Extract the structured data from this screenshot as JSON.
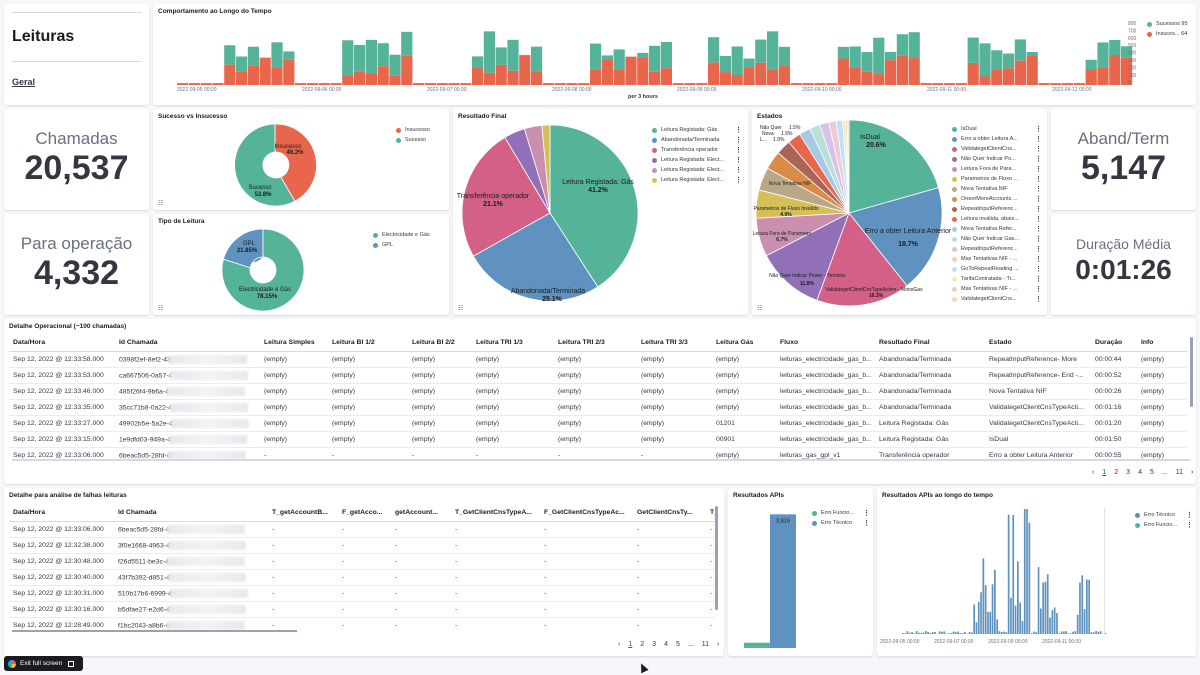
{
  "header": {
    "title": "Leituras",
    "link": "Geral"
  },
  "colors": {
    "success": "#54b399",
    "failure": "#e7664c",
    "blue": "#6092c0",
    "pink": "#d36086",
    "purple": "#9170b8",
    "yellow": "#d6bf57",
    "tan": "#b9a888",
    "orange": "#da8b45",
    "lilac": "#ca8eae",
    "rose": "#e7664c"
  },
  "timeline": {
    "title": "Comportamento ao Longo do Tempo",
    "xlabel": "per 3 hours",
    "ticks": [
      "2022-09-05 00:00",
      "2022-09-06 00:00",
      "2022-09-07 00:00",
      "2022-09-08 00:00",
      "2022-09-09 00:00",
      "2022-09-10 00:00",
      "2022-09-11 00:00",
      "2022-09-12 00:00"
    ],
    "yticks": [
      "800",
      "700",
      "600",
      "500",
      "400",
      "300",
      "200",
      "100",
      "0"
    ],
    "legend": [
      {
        "name": "Sucessos",
        "value": "95"
      },
      {
        "name": "Insuces...",
        "value": "64"
      }
    ]
  },
  "metrics": {
    "chamadas": {
      "label": "Chamadas",
      "value": "20,537"
    },
    "operacao": {
      "label": "Para operação",
      "value": "4,332"
    },
    "aband": {
      "label": "Aband/Term",
      "value": "5,147"
    },
    "duracao": {
      "label": "Duração Média",
      "value": "0:01:26"
    }
  },
  "sucesso": {
    "title": "Sucesso vs Insucesso",
    "legend": [
      "Insucesso",
      "Sucesso"
    ],
    "labels": {
      "insucesso": "Insucesso",
      "insucesso_pct": "46.2%",
      "sucesso": "Sucesso",
      "sucesso_pct": "53.8%"
    }
  },
  "tipo": {
    "title": "Tipo de Leitura",
    "legend": [
      "Electricidade e Gás",
      "GPL"
    ],
    "labels": {
      "gpl": "GPL",
      "gpl_pct": "21.85%",
      "elec": "Electricidade e Gás",
      "elec_pct": "78.15%"
    }
  },
  "resultado": {
    "title": "Resultado Final",
    "legend": [
      "Leitura Registada: Gás",
      "Abandonada/Terminada",
      "Transferência operador",
      "Leitura Registada: Elect...",
      "Leitura Registada: Elect...",
      "Leitura Registada: Elect..."
    ],
    "labels": {
      "gas": "Leitura Registada: Gás",
      "gas_pct": "41.2%",
      "aband": "Abandonada/Terminada",
      "aband_pct": "25.1%",
      "transf": "Transferência operador",
      "transf_pct": "21.1%"
    }
  },
  "estados": {
    "title": "Estados",
    "legend": [
      "IsDual",
      "Erro a obter Leitura A...",
      "ValidategetClientCns...",
      "Não Quer Indicar Po...",
      "Leitura Fora de Para...",
      "Parametros de Fluxo ...",
      "Nova Tentativa NIF",
      "OneorMoreAccounts ...",
      "RepeatInputReferenc...",
      "Leitura inválida, abaix...",
      "Nova Tentativa Refer...",
      "Não Quer Indicar Gas...",
      "RepeatInputReferenc...",
      "Max Tentativas NIF - ...",
      "GoToRepeatReading ...",
      "TarifaContratada - Tr...",
      "Max Tentativas NIF - ...",
      "ValidategetClientCns..."
    ],
    "labels": {
      "isdual": "IsDual",
      "isdual_pct": "20.6%",
      "erro": "Erro a obter Leitura Anterior",
      "erro_pct": "18.7%",
      "valid": "ValidategetClientCnsTypeAction - MonoGas",
      "valid_pct": "16.3%",
      "naoquer": "Não Quer Indicar Power - Termina",
      "naoquer_pct": "11.8%",
      "fora": "Leitura Fora de Parametro",
      "fora_pct": "6.7%",
      "param": "Parametros de Fluxo Inválido",
      "param_pct": "4.9%",
      "nova": "Nova Tentativa NIF",
      "s1": "Não Quer",
      "s1p": "1.5%",
      "s2": "Nova",
      "s2p": "1.9%",
      "s3": "L...",
      "s3p": "1.9%"
    }
  },
  "detalhe": {
    "title": "Detalhe Operacional (~100 chamadas)",
    "columns": [
      "Data/Hora",
      "Id Chamada",
      "Leitura Simples",
      "Leitura BI 1/2",
      "Leitura BI 2/2",
      "Leitura TRI 1/3",
      "Leitura TRI 2/3",
      "Leitura TRI 3/3",
      "Leitura Gás",
      "Fluxo",
      "Resultado Final",
      "Estado",
      "Duração",
      "Info"
    ],
    "rows": [
      [
        "Sep 12, 2022 @ 12:33:58.000",
        "0398f2ef-8ef2-43",
        "(empty)",
        "(empty)",
        "(empty)",
        "(empty)",
        "(empty)",
        "(empty)",
        "(empty)",
        "leituras_electricidade_gas_b...",
        "Abandonada/Terminada",
        "RepeatInputReference- More",
        "00:00:44",
        "(empty)"
      ],
      [
        "Sep 12, 2022 @ 12:33:53.000",
        "ca667506-0a57-4",
        "(empty)",
        "(empty)",
        "(empty)",
        "(empty)",
        "(empty)",
        "(empty)",
        "(empty)",
        "leituras_electricidade_gas_b...",
        "Abandonada/Terminada",
        "RepeatInputReference- End -...",
        "00:00:52",
        "(empty)"
      ],
      [
        "Sep 12, 2022 @ 12:33:46.000",
        "485f26f4-9b6a-4",
        "(empty)",
        "(empty)",
        "(empty)",
        "(empty)",
        "(empty)",
        "(empty)",
        "(empty)",
        "leituras_electricidade_gas_b...",
        "Abandonada/Terminada",
        "Nova Tentativa NIF",
        "00:00:26",
        "(empty)"
      ],
      [
        "Sep 12, 2022 @ 12:33:35.000",
        "35cc71b8-0a22-4",
        "(empty)",
        "(empty)",
        "(empty)",
        "(empty)",
        "(empty)",
        "(empty)",
        "(empty)",
        "leituras_electricidade_gas_b...",
        "Abandonada/Terminada",
        "ValidategetClientCnsTypeActi...",
        "00:01:16",
        "(empty)"
      ],
      [
        "Sep 12, 2022 @ 12:33:27.000",
        "49902b5e-5a2e-4",
        "(empty)",
        "(empty)",
        "(empty)",
        "(empty)",
        "(empty)",
        "(empty)",
        "01201",
        "leituras_electricidade_gas_b...",
        "Leitura Registada: Gás",
        "ValidategetClientCnsTypeActi...",
        "00:01:20",
        "(empty)"
      ],
      [
        "Sep 12, 2022 @ 12:33:15.000",
        "1e9dfd03-949a-4",
        "(empty)",
        "(empty)",
        "(empty)",
        "(empty)",
        "(empty)",
        "(empty)",
        "00901",
        "leituras_electricidade_gas_b...",
        "Leitura Registada: Gás",
        "IsDual",
        "00:01:50",
        "(empty)"
      ],
      [
        "Sep 12, 2022 @ 12:33:06.000",
        "6beac5d5-28fd-4",
        "-",
        "-",
        "-",
        "-",
        "-",
        "-",
        "(empty)",
        "leituras_gas_gpl_v1",
        "Transferência operador",
        "Erro a obter Leitura Anterior",
        "00:00:55",
        "(empty)"
      ]
    ],
    "pager": [
      "1",
      "2",
      "3",
      "4",
      "5",
      "...",
      "11"
    ]
  },
  "falhas": {
    "title": "Detalhe para análise de falhas leituras",
    "columns": [
      "Data/Hora",
      "Id Chamada",
      "T_getAccountB...",
      "F_getAcco...",
      "getAccount...",
      "T_GetClientCnsTypeA...",
      "F_GetClientCnsTypeAc...",
      "GetClientCnsTy...",
      "T_..."
    ],
    "rows": [
      [
        "Sep 12, 2022 @ 12:33:06.000",
        "6beac5d5-28fd-4",
        "-",
        "-",
        "-",
        "-",
        "-",
        "-",
        "-"
      ],
      [
        "Sep 12, 2022 @ 12:32:38.000",
        "3f0e1668-4963-4",
        "-",
        "-",
        "-",
        "-",
        "-",
        "-",
        "-"
      ],
      [
        "Sep 12, 2022 @ 12:30:48.000",
        "f26d5511-be3c-4",
        "-",
        "-",
        "-",
        "-",
        "-",
        "-",
        "-"
      ],
      [
        "Sep 12, 2022 @ 12:30:40.000",
        "43f7b392-d851-4",
        "-",
        "-",
        "-",
        "-",
        "-",
        "-",
        "-"
      ],
      [
        "Sep 12, 2022 @ 12:30:31.000",
        "510b17b6-6999-4",
        "-",
        "-",
        "-",
        "-",
        "-",
        "-",
        "-"
      ],
      [
        "Sep 12, 2022 @ 12:30:16.000",
        "b5dfae27-e2d6-4",
        "-",
        "-",
        "-",
        "-",
        "-",
        "-",
        "-"
      ],
      [
        "Sep 12, 2022 @ 12:28:49.000",
        "f1bc2043-a8b6-4",
        "-",
        "-",
        "-",
        "-",
        "-",
        "-",
        "-"
      ]
    ],
    "pager": [
      "1",
      "2",
      "3",
      "4",
      "5",
      "...",
      "11"
    ]
  },
  "apis": {
    "title": "Resultados APIs",
    "legend": [
      "Erro Funcio...",
      "Erro Técnico"
    ],
    "bar_label": "3,819",
    "chart_data": {
      "type": "bar",
      "categories": [
        "Erro Funcional",
        "Erro Técnico"
      ],
      "values": [
        150,
        3819
      ],
      "ylim": [
        0,
        4000
      ]
    }
  },
  "apistime": {
    "title": "Resultados APIs ao longo do tempo",
    "legend": [
      "Erro Técnico",
      "Erro Funcio..."
    ],
    "ticks": [
      "2022-09-05 00:00",
      "2022-09-07 00:00",
      "2022-09-09 00:00",
      "2022-09-11 00:00"
    ]
  },
  "footer": {
    "exit": "Exit full screen"
  }
}
